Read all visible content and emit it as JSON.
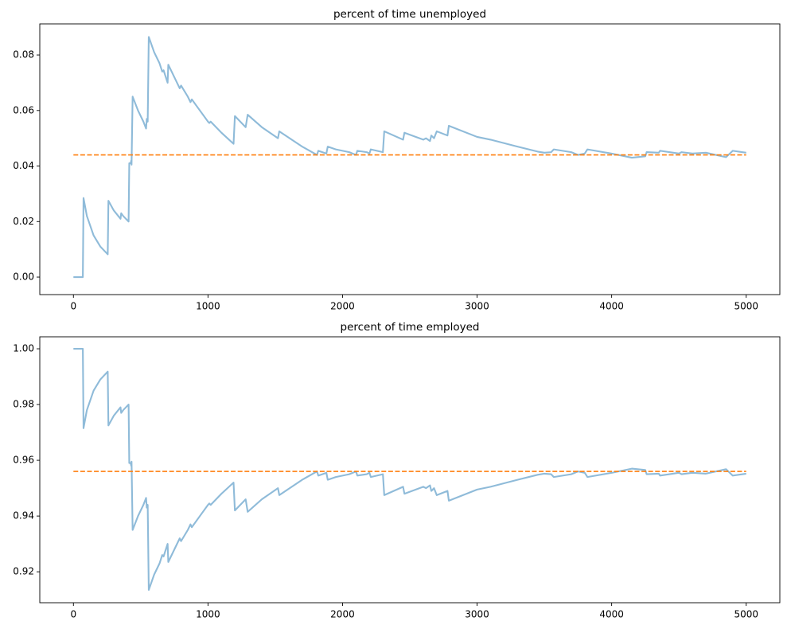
{
  "chart_data": [
    {
      "type": "line",
      "title": "percent of time unemployed",
      "xlim": [
        -250,
        5250
      ],
      "ylim": [
        -0.0063,
        0.0912
      ],
      "xticks": [
        0,
        1000,
        2000,
        3000,
        4000,
        5000
      ],
      "yticks": [
        {
          "value": 0,
          "label": "0.00"
        },
        0.02,
        0.04,
        0.06,
        0.08
      ],
      "series": [
        {
          "color": "#1f77b4",
          "alpha": 0.5,
          "linestyle": "solid",
          "x": [
            0,
            70,
            75,
            100,
            150,
            200,
            255,
            260,
            300,
            350,
            355,
            370,
            410,
            415,
            425,
            430,
            432,
            440,
            480,
            520,
            540,
            545,
            552,
            560,
            600,
            640,
            660,
            670,
            700,
            705,
            750,
            790,
            800,
            850,
            870,
            880,
            1000,
            1010,
            1020,
            1100,
            1190,
            1200,
            1280,
            1295,
            1400,
            1520,
            1530,
            1700,
            1810,
            1820,
            1880,
            1890,
            1950,
            2000,
            2050,
            2100,
            2110,
            2180,
            2200,
            2210,
            2300,
            2310,
            2450,
            2460,
            2600,
            2620,
            2650,
            2660,
            2680,
            2700,
            2780,
            2790,
            3000,
            3100,
            3300,
            3450,
            3500,
            3550,
            3570,
            3700,
            3750,
            3800,
            3820,
            4000,
            4100,
            4150,
            4250,
            4260,
            4350,
            4360,
            4500,
            4520,
            4600,
            4700,
            4850,
            4900,
            5000
          ],
          "values": [
            0,
            0,
            0.0285,
            0.022,
            0.015,
            0.011,
            0.0082,
            0.0275,
            0.024,
            0.021,
            0.023,
            0.022,
            0.02,
            0.041,
            0.041,
            0.042,
            0.0405,
            0.065,
            0.06,
            0.056,
            0.0535,
            0.057,
            0.056,
            0.0865,
            0.081,
            0.077,
            0.074,
            0.0745,
            0.07,
            0.0765,
            0.072,
            0.068,
            0.069,
            0.065,
            0.063,
            0.064,
            0.056,
            0.0555,
            0.056,
            0.052,
            0.048,
            0.058,
            0.054,
            0.0585,
            0.054,
            0.05,
            0.0525,
            0.047,
            0.044,
            0.0455,
            0.0445,
            0.047,
            0.046,
            0.0455,
            0.045,
            0.044,
            0.0455,
            0.045,
            0.0445,
            0.046,
            0.045,
            0.0525,
            0.0495,
            0.052,
            0.0495,
            0.05,
            0.049,
            0.051,
            0.05,
            0.0525,
            0.051,
            0.0545,
            0.0505,
            0.0495,
            0.047,
            0.0452,
            0.0448,
            0.045,
            0.046,
            0.045,
            0.044,
            0.0445,
            0.046,
            0.0445,
            0.0435,
            0.043,
            0.0435,
            0.045,
            0.0448,
            0.0455,
            0.0445,
            0.045,
            0.0445,
            0.0448,
            0.0432,
            0.0455,
            0.0448
          ]
        },
        {
          "color": "#ff7f0e",
          "alpha": 1,
          "linestyle": "dashed",
          "x": [
            0,
            5000
          ],
          "values": [
            0.044,
            0.044
          ]
        }
      ]
    },
    {
      "type": "line",
      "title": "percent of time employed",
      "xlim": [
        -250,
        5250
      ],
      "ylim": [
        0.9089,
        1.0043
      ],
      "xticks": [
        0,
        1000,
        2000,
        3000,
        4000,
        5000
      ],
      "yticks": [
        0.92,
        0.94,
        0.96,
        0.98,
        {
          "value": 1,
          "label": "1.00"
        }
      ],
      "series": [
        {
          "color": "#1f77b4",
          "alpha": 0.5,
          "linestyle": "solid",
          "x": [
            0,
            70,
            75,
            100,
            150,
            200,
            255,
            260,
            300,
            350,
            355,
            370,
            410,
            415,
            425,
            430,
            432,
            440,
            480,
            520,
            540,
            545,
            552,
            560,
            600,
            640,
            660,
            670,
            700,
            705,
            750,
            790,
            800,
            850,
            870,
            880,
            1000,
            1010,
            1020,
            1100,
            1190,
            1200,
            1280,
            1295,
            1400,
            1520,
            1530,
            1700,
            1810,
            1820,
            1880,
            1890,
            1950,
            2000,
            2050,
            2100,
            2110,
            2180,
            2200,
            2210,
            2300,
            2310,
            2450,
            2460,
            2600,
            2620,
            2650,
            2660,
            2680,
            2700,
            2780,
            2790,
            3000,
            3100,
            3300,
            3450,
            3500,
            3550,
            3570,
            3700,
            3750,
            3800,
            3820,
            4000,
            4100,
            4150,
            4250,
            4260,
            4350,
            4360,
            4500,
            4520,
            4600,
            4700,
            4850,
            4900,
            5000
          ],
          "values": [
            1,
            1,
            0.9715,
            0.978,
            0.985,
            0.989,
            0.9918,
            0.9725,
            0.976,
            0.979,
            0.977,
            0.978,
            0.98,
            0.959,
            0.959,
            0.958,
            0.9595,
            0.935,
            0.94,
            0.944,
            0.9465,
            0.943,
            0.944,
            0.9135,
            0.919,
            0.923,
            0.926,
            0.9255,
            0.93,
            0.9235,
            0.928,
            0.932,
            0.931,
            0.935,
            0.937,
            0.936,
            0.944,
            0.9445,
            0.944,
            0.948,
            0.952,
            0.942,
            0.946,
            0.9415,
            0.946,
            0.95,
            0.9475,
            0.953,
            0.956,
            0.9545,
            0.9555,
            0.953,
            0.954,
            0.9545,
            0.955,
            0.956,
            0.9545,
            0.955,
            0.9555,
            0.954,
            0.955,
            0.9475,
            0.9505,
            0.948,
            0.9505,
            0.95,
            0.951,
            0.949,
            0.95,
            0.9475,
            0.949,
            0.9455,
            0.9495,
            0.9505,
            0.953,
            0.9548,
            0.9552,
            0.955,
            0.954,
            0.955,
            0.956,
            0.9555,
            0.954,
            0.9555,
            0.9565,
            0.957,
            0.9565,
            0.955,
            0.9552,
            0.9545,
            0.9555,
            0.955,
            0.9555,
            0.9552,
            0.9568,
            0.9545,
            0.9552
          ]
        },
        {
          "color": "#ff7f0e",
          "alpha": 1,
          "linestyle": "dashed",
          "x": [
            0,
            5000
          ],
          "values": [
            0.956,
            0.956
          ]
        }
      ]
    }
  ]
}
